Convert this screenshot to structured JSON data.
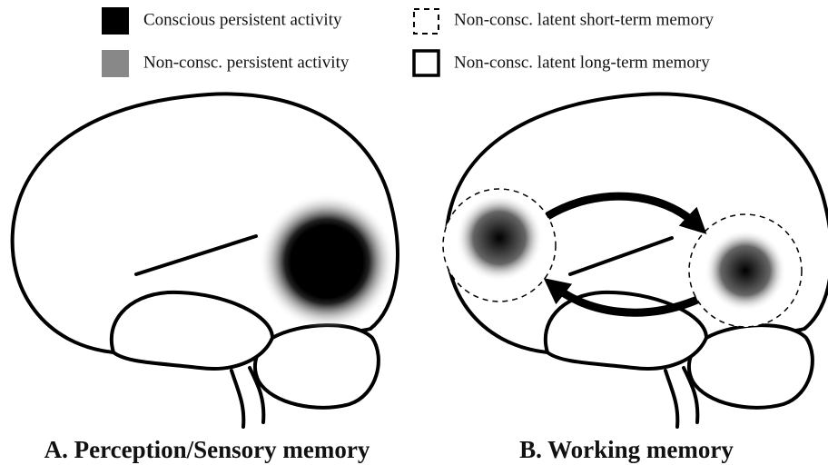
{
  "legend": [
    {
      "label": "Conscious persistent activity"
    },
    {
      "label": "Non-consc. persistent activity"
    },
    {
      "label": "Non-consc. latent short-term memory"
    },
    {
      "label": "Non-consc. latent long-term memory"
    }
  ],
  "panels": [
    {
      "label": "A. Perception/Sensory memory"
    },
    {
      "label": "B. Working memory"
    }
  ]
}
